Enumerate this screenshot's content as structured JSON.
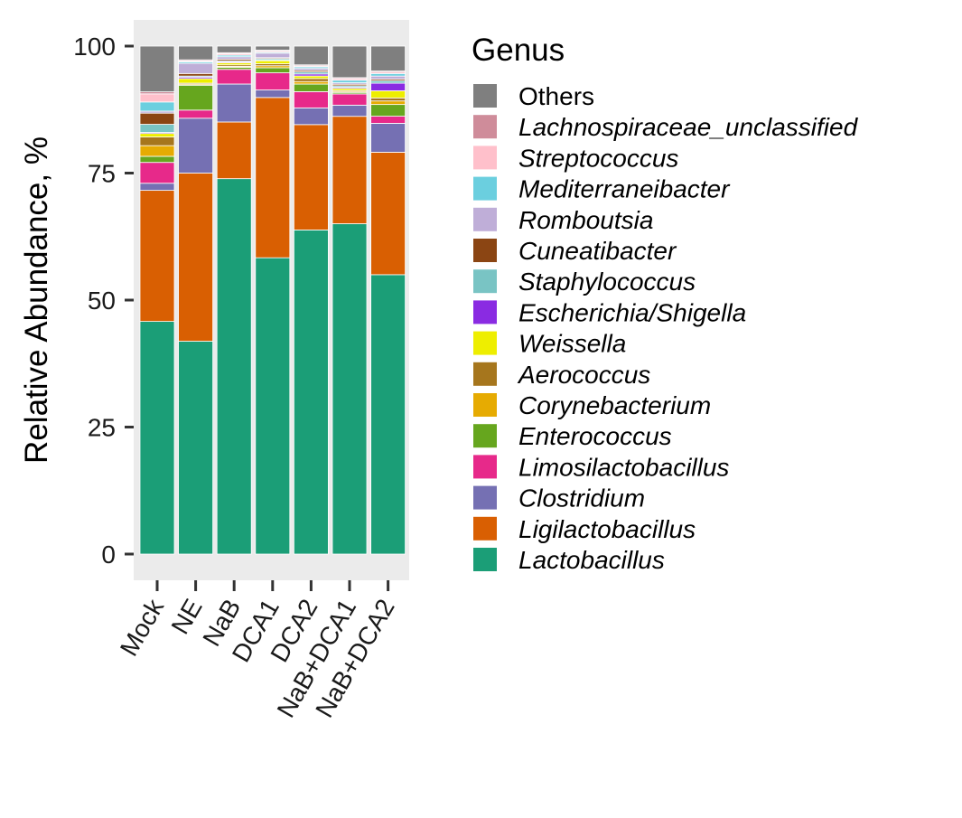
{
  "chart_data": {
    "type": "bar",
    "stacked": true,
    "title": "",
    "xlabel": "",
    "ylabel": "Relative Abundance, %",
    "ylim": [
      0,
      100
    ],
    "yticks": [
      0,
      25,
      50,
      75,
      100
    ],
    "grid": false,
    "legend_title": "Genus",
    "legend_position": "right",
    "categories": [
      "Mock",
      "NE",
      "NaB",
      "DCA1",
      "DCA2",
      "NaB+DCA1",
      "NaB+DCA2"
    ],
    "series": [
      {
        "name": "Lactobacillus",
        "color": "#1B9E77",
        "values": [
          45.8,
          41.9,
          74.2,
          58.8,
          64.0,
          64.9,
          55.0
        ]
      },
      {
        "name": "Ligilactobacillus",
        "color": "#D95F02",
        "values": [
          25.8,
          33.1,
          11.2,
          31.8,
          20.8,
          21.1,
          24.1
        ]
      },
      {
        "name": "Clostridium",
        "color": "#7570B3",
        "values": [
          1.4,
          10.8,
          7.5,
          1.5,
          3.3,
          2.2,
          5.7
        ]
      },
      {
        "name": "Limosilactobacillus",
        "color": "#E7298A",
        "values": [
          4.1,
          1.6,
          2.9,
          3.4,
          3.2,
          2.2,
          1.4
        ]
      },
      {
        "name": "Enterococcus",
        "color": "#66A61E",
        "values": [
          1.2,
          4.9,
          0.4,
          1.0,
          1.5,
          0.3,
          2.3
        ]
      },
      {
        "name": "Corynebacterium",
        "color": "#E6AB02",
        "values": [
          2.1,
          0.2,
          0.2,
          0.4,
          0.5,
          0.2,
          0.7
        ]
      },
      {
        "name": "Aerococcus",
        "color": "#A6761D",
        "values": [
          1.7,
          0.2,
          0.3,
          0.4,
          0.6,
          0.2,
          0.6
        ]
      },
      {
        "name": "Weissella",
        "color": "#EEEE00",
        "values": [
          0.7,
          0.9,
          0.4,
          0.6,
          0.5,
          0.4,
          1.4
        ]
      },
      {
        "name": "Escherichia/Shigella",
        "color": "#8A2BE2",
        "values": [
          0.2,
          0.3,
          0.2,
          0.1,
          0.4,
          0.2,
          1.5
        ]
      },
      {
        "name": "Staphylococcus",
        "color": "#79C4C4",
        "values": [
          1.6,
          0.2,
          0.2,
          0.3,
          0.4,
          0.3,
          0.5
        ]
      },
      {
        "name": "Cuneatibacter",
        "color": "#8B4513",
        "values": [
          2.2,
          0.5,
          0.3,
          0.2,
          0.3,
          0.3,
          0.3
        ]
      },
      {
        "name": "Romboutsia",
        "color": "#BFAED8",
        "values": [
          0.4,
          2.0,
          0.5,
          0.9,
          0.4,
          0.3,
          0.6
        ]
      },
      {
        "name": "Mediterraneibacter",
        "color": "#6BCFDF",
        "values": [
          1.8,
          0.3,
          0.3,
          0.2,
          0.3,
          0.5,
          0.5
        ]
      },
      {
        "name": "Streptococcus",
        "color": "#FFC0CB",
        "values": [
          1.6,
          0.2,
          0.3,
          0.2,
          0.2,
          0.3,
          0.3
        ]
      },
      {
        "name": "Lachnospiraceae_unclassified",
        "color": "#CF8C9A",
        "values": [
          0.4,
          0.2,
          0.2,
          0.2,
          0.2,
          0.2,
          0.2
        ]
      },
      {
        "name": "Others",
        "color": "#7F7F7F",
        "values": [
          9.0,
          2.7,
          1.3,
          0.8,
          3.7,
          6.2,
          4.9
        ]
      }
    ]
  }
}
